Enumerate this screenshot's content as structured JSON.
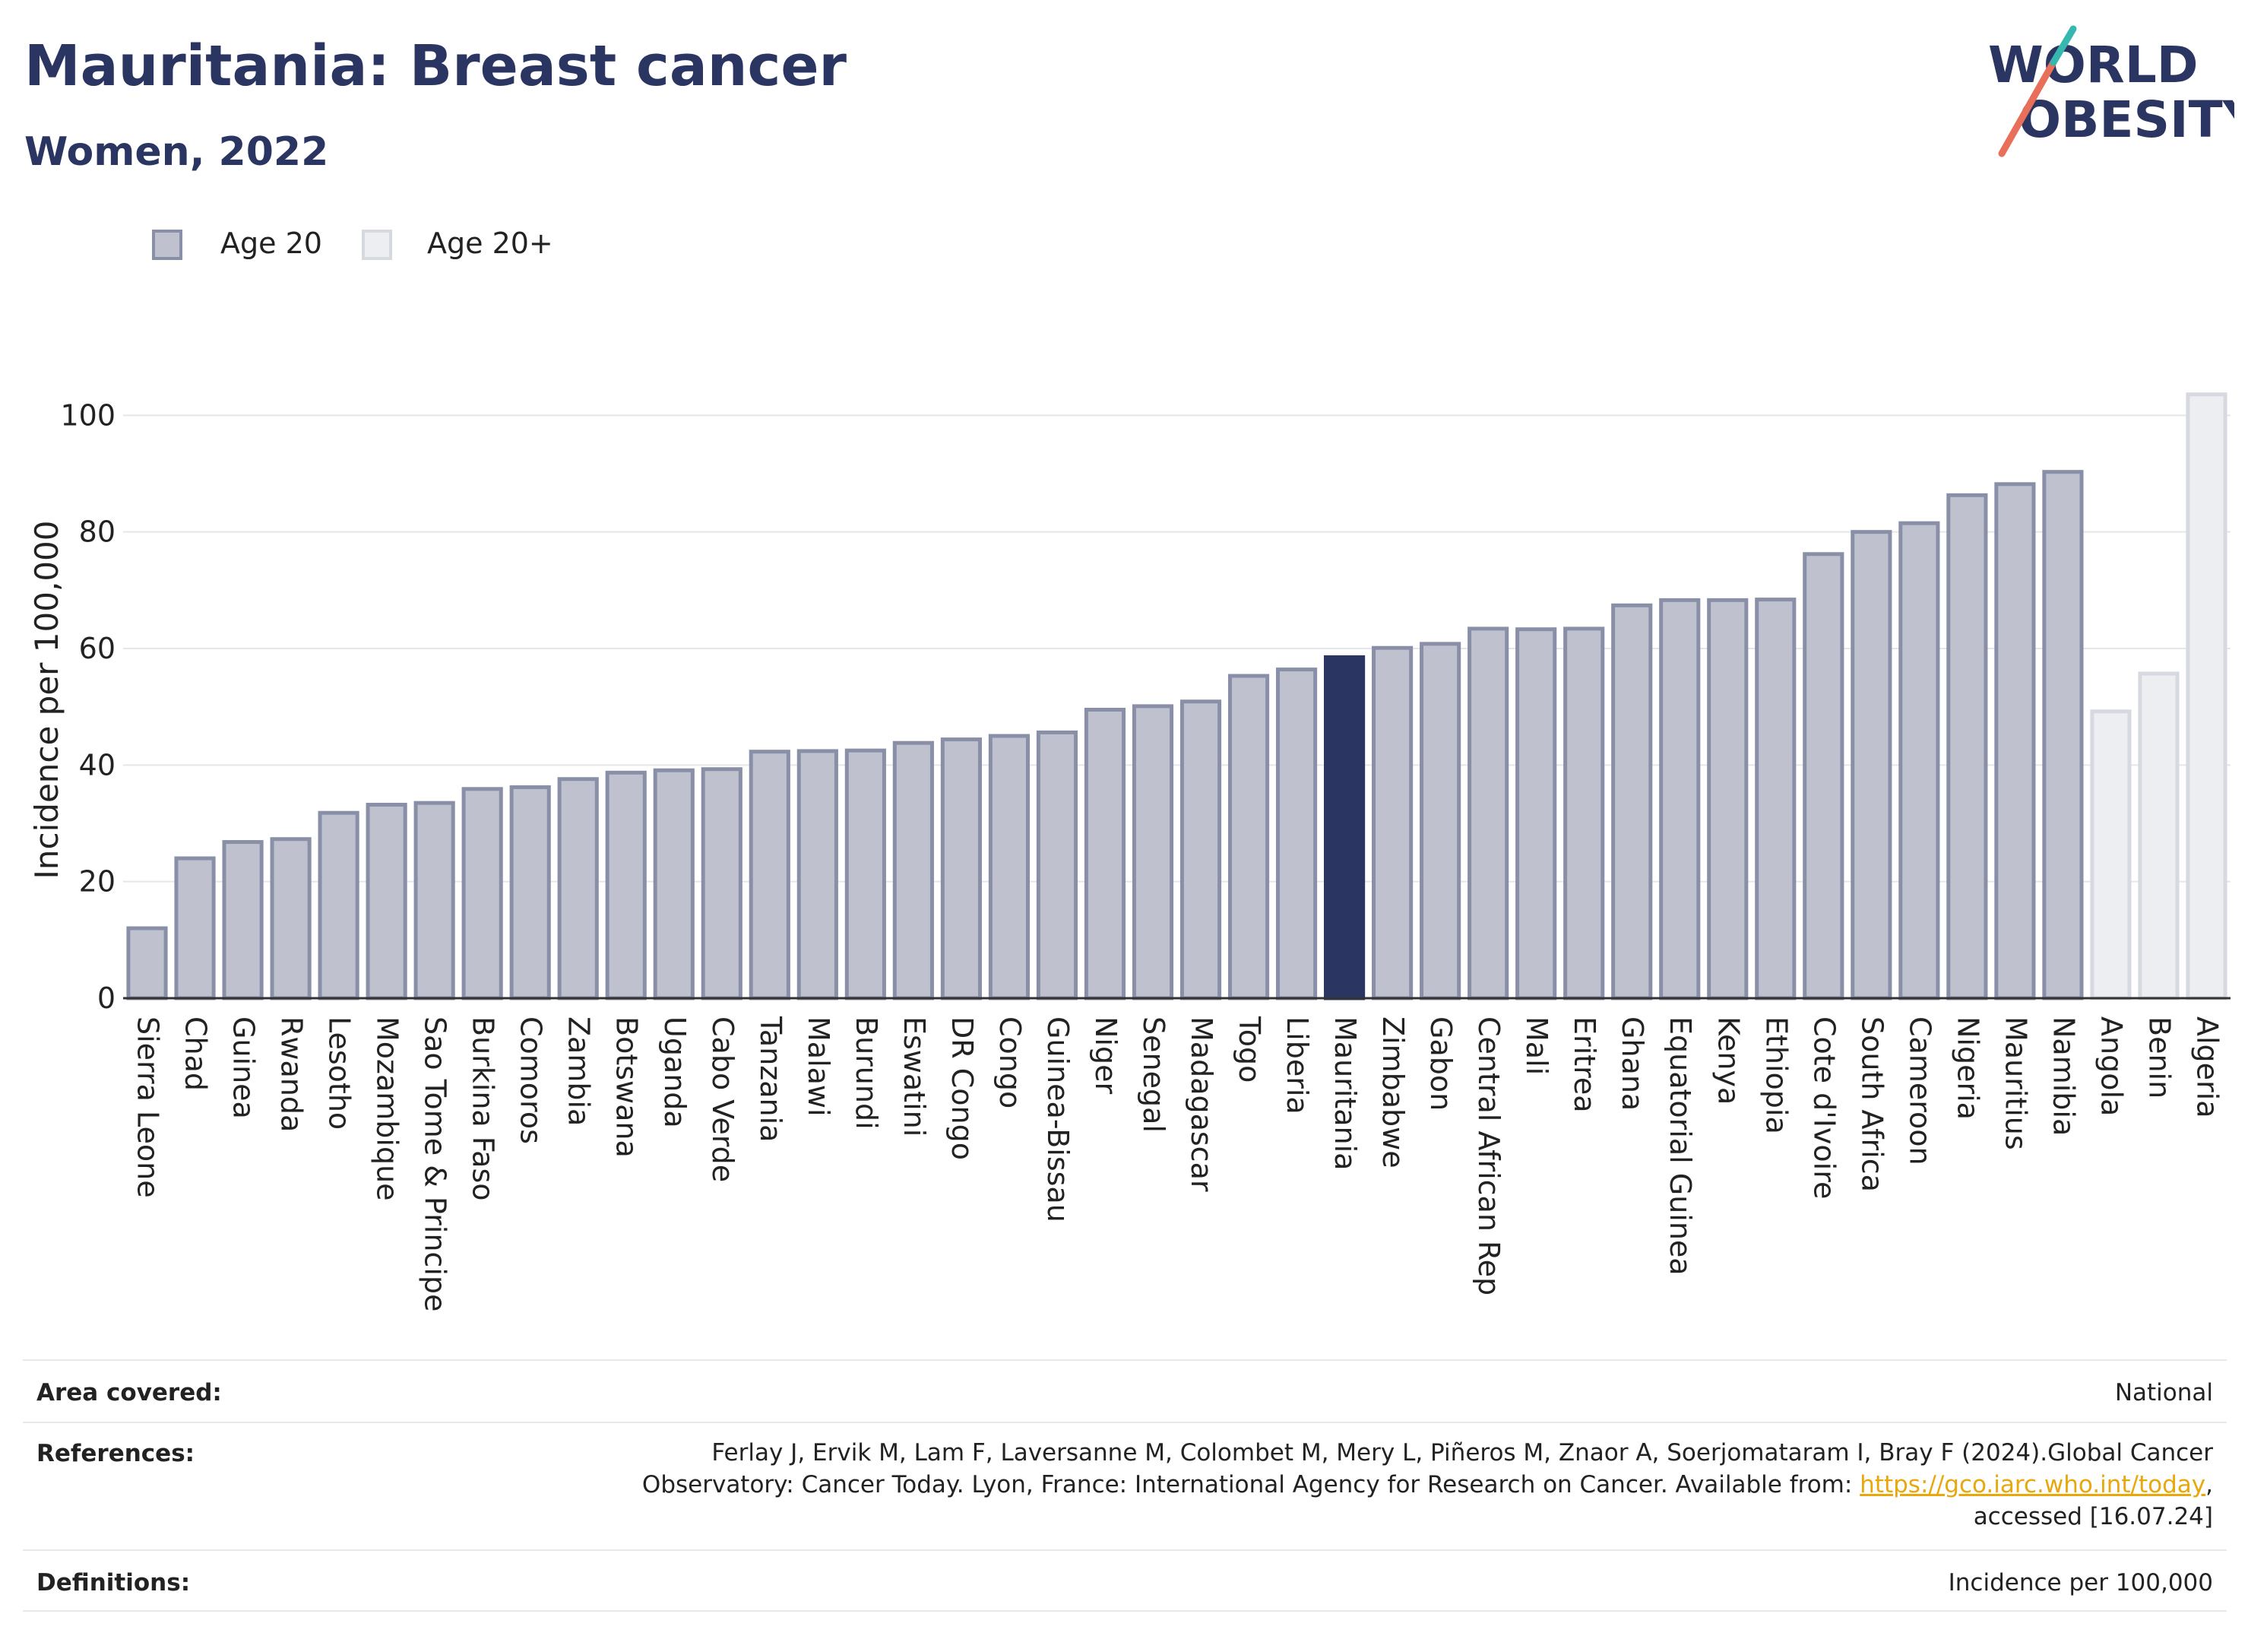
{
  "header": {
    "title": "Mauritania: Breast cancer",
    "subtitle": "Women, 2022"
  },
  "logo": {
    "line1": "WORLD",
    "line2": "OBESITY"
  },
  "legend": [
    {
      "label": "Age 20",
      "color": "#bfc2ce",
      "border": "#8a8fa8"
    },
    {
      "label": "Age 20+",
      "color": "#eceef2",
      "border": "#d6d9e0"
    }
  ],
  "chart_data": {
    "type": "bar",
    "ylabel": "Incidence per 100,000",
    "xlabel": "",
    "ylim": [
      0,
      105
    ],
    "yticks": [
      0,
      20,
      40,
      60,
      80,
      100
    ],
    "grid": true,
    "legend_position": "top-left",
    "highlight": "Mauritania",
    "colors": {
      "age20_fill": "#bfc2ce",
      "age20_edge": "#8a8fa8",
      "age20plus_fill": "#eceef2",
      "age20plus_edge": "#d6d9e0",
      "highlight": "#2b3561"
    },
    "categories": [
      "Sierra Leone",
      "Chad",
      "Guinea",
      "Rwanda",
      "Lesotho",
      "Mozambique",
      "Sao Tome & Principe",
      "Burkina Faso",
      "Comoros",
      "Zambia",
      "Botswana",
      "Uganda",
      "Cabo Verde",
      "Tanzania",
      "Malawi",
      "Burundi",
      "Eswatini",
      "DR Congo",
      "Congo",
      "Guinea-Bissau",
      "Niger",
      "Senegal",
      "Madagascar",
      "Togo",
      "Liberia",
      "Mauritania",
      "Zimbabwe",
      "Gabon",
      "Central African Rep",
      "Mali",
      "Eritrea",
      "Ghana",
      "Equatorial Guinea",
      "Kenya",
      "Ethiopia",
      "Cote d'Ivoire",
      "South Africa",
      "Cameroon",
      "Nigeria",
      "Mauritius",
      "Namibia",
      "Angola",
      "Benin",
      "Algeria"
    ],
    "values": [
      12,
      24,
      26.8,
      27.3,
      31.8,
      33.2,
      33.5,
      35.9,
      36.2,
      37.6,
      38.7,
      39.1,
      39.3,
      42.3,
      42.4,
      42.5,
      43.8,
      44.4,
      45,
      45.6,
      49.5,
      50.1,
      50.9,
      55.3,
      56.4,
      58.5,
      60.1,
      60.8,
      63.4,
      63.3,
      63.4,
      67.4,
      68.3,
      68.3,
      68.4,
      76.2,
      80,
      81.5,
      86.3,
      88.2,
      90.3,
      49.2,
      55.7,
      103.6
    ],
    "groups": [
      "Age 20",
      "Age 20",
      "Age 20",
      "Age 20",
      "Age 20",
      "Age 20",
      "Age 20",
      "Age 20",
      "Age 20",
      "Age 20",
      "Age 20",
      "Age 20",
      "Age 20",
      "Age 20",
      "Age 20",
      "Age 20",
      "Age 20",
      "Age 20",
      "Age 20",
      "Age 20",
      "Age 20",
      "Age 20",
      "Age 20",
      "Age 20",
      "Age 20",
      "Age 20",
      "Age 20",
      "Age 20",
      "Age 20",
      "Age 20",
      "Age 20",
      "Age 20",
      "Age 20",
      "Age 20",
      "Age 20",
      "Age 20",
      "Age 20",
      "Age 20",
      "Age 20",
      "Age 20",
      "Age 20",
      "Age 20+",
      "Age 20+",
      "Age 20+"
    ]
  },
  "info": {
    "area_label": "Area covered:",
    "area_value": "National",
    "references_label": "References:",
    "references_line1": "Ferlay J, Ervik M, Lam F, Laversanne M, Colombet M, Mery L, Piñeros M, Znaor A, Soerjomataram I, Bray F (2024).Global Cancer",
    "references_line2_pre": "Observatory: Cancer Today. Lyon, France: International Agency for Research on Cancer. Available from: ",
    "references_link": "https://gco.iarc.who.int/today",
    "references_line2_post": ",",
    "references_line3": "accessed [16.07.24]",
    "definitions_label": "Definitions:",
    "definitions_value": "Incidence per 100,000"
  }
}
